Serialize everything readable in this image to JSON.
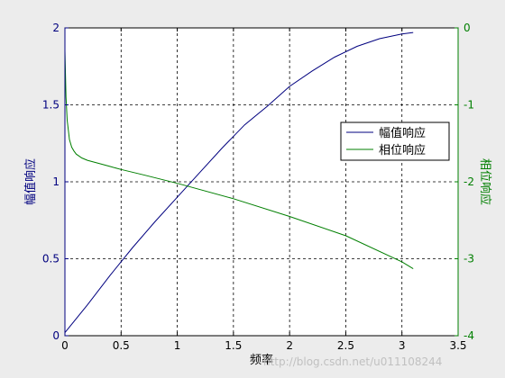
{
  "chart_data": {
    "type": "line",
    "title": "",
    "xlabel": "频率",
    "ylabel_left": "幅值响应",
    "ylabel_right": "相位响应",
    "xlim": [
      0,
      3.5
    ],
    "ylim_left": [
      0,
      2
    ],
    "ylim_right": [
      -4,
      0
    ],
    "x_ticks": [
      "0",
      "0.5",
      "1",
      "1.5",
      "2",
      "2.5",
      "3",
      "3.5"
    ],
    "y_left_ticks": [
      "0",
      "0.5",
      "1",
      "1.5",
      "2"
    ],
    "y_right_ticks": [
      "-4",
      "-3",
      "-2",
      "-1",
      "0"
    ],
    "grid": true,
    "legend_position": "right",
    "series": [
      {
        "name": "幅值响应",
        "axis": "left",
        "color": "#00007f",
        "x": [
          0,
          0.2,
          0.4,
          0.6,
          0.8,
          1.0,
          1.2,
          1.4,
          1.6,
          1.8,
          2.0,
          2.2,
          2.4,
          2.6,
          2.8,
          3.0,
          3.1
        ],
        "y": [
          0.02,
          0.2,
          0.39,
          0.57,
          0.74,
          0.9,
          1.06,
          1.22,
          1.37,
          1.49,
          1.62,
          1.72,
          1.81,
          1.88,
          1.93,
          1.96,
          1.97
        ]
      },
      {
        "name": "相位响应",
        "axis": "right",
        "color": "#007f00",
        "x": [
          0,
          0.005,
          0.01,
          0.02,
          0.04,
          0.06,
          0.08,
          0.1,
          0.15,
          0.2,
          0.3,
          0.4,
          0.5,
          0.7,
          1.0,
          1.5,
          2.0,
          2.5,
          3.0,
          3.1
        ],
        "y": [
          -0.3,
          -0.6,
          -0.9,
          -1.2,
          -1.45,
          -1.55,
          -1.6,
          -1.64,
          -1.69,
          -1.72,
          -1.76,
          -1.8,
          -1.84,
          -1.91,
          -2.02,
          -2.22,
          -2.45,
          -2.7,
          -3.04,
          -3.13
        ]
      }
    ]
  },
  "watermark": "http://blog.csdn.net/u011108244"
}
